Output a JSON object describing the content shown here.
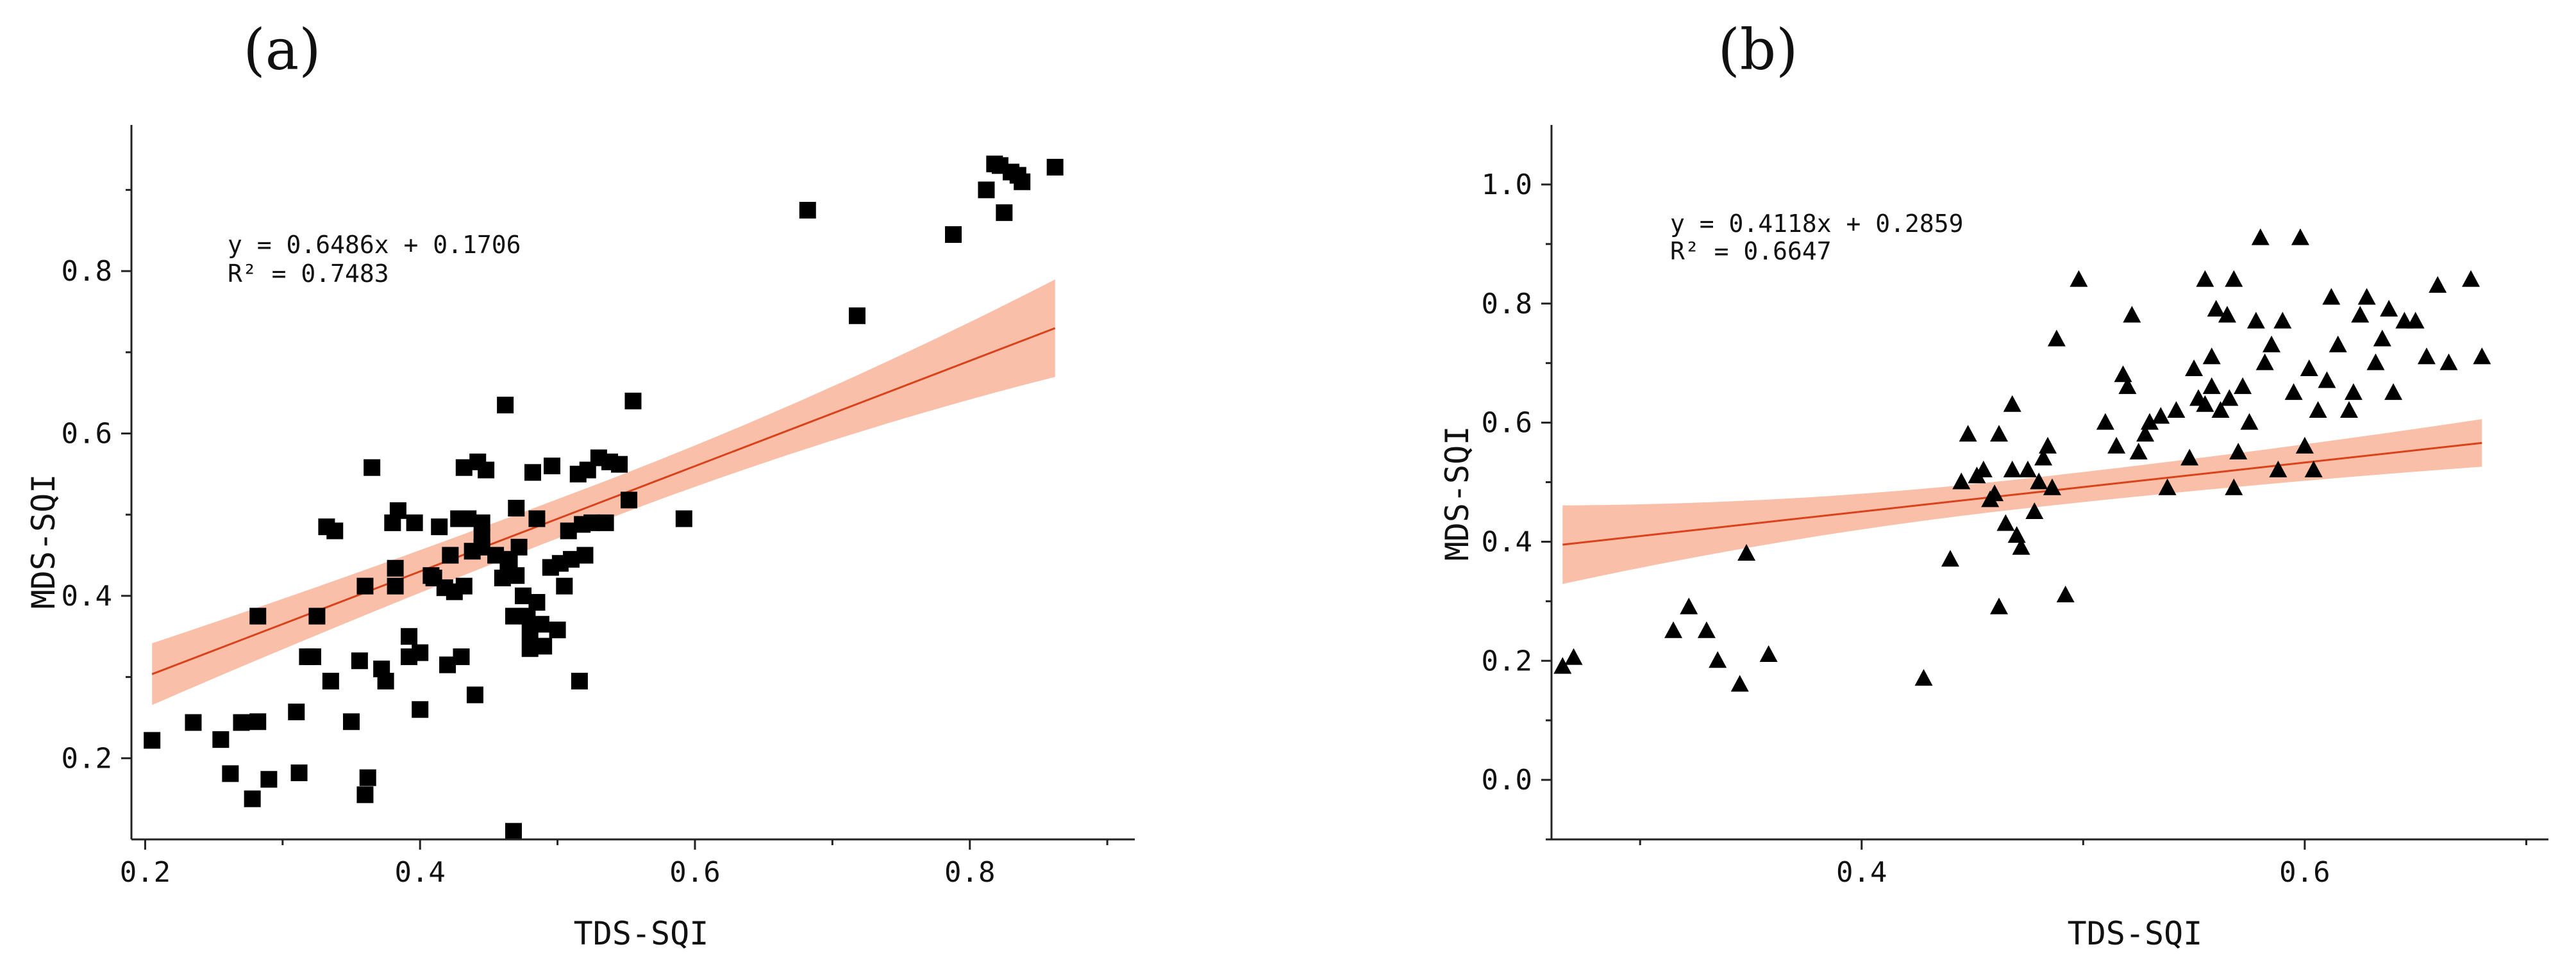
{
  "chart_data": [
    {
      "type": "scatter",
      "panel_label": "(a)",
      "marker": "square",
      "xlabel": "TDS-SQI",
      "ylabel": "MDS-SQI",
      "xlim": [
        0.19,
        0.92
      ],
      "ylim": [
        0.1,
        0.98
      ],
      "xticks": [
        0.2,
        0.4,
        0.6,
        0.8
      ],
      "xtick_labels": [
        "0.2",
        "0.4",
        "0.6",
        "0.8"
      ],
      "xticks_minor": [
        0.3,
        0.5,
        0.7,
        0.9
      ],
      "yticks": [
        0.2,
        0.4,
        0.6,
        0.8
      ],
      "ytick_labels": [
        "0.2",
        "0.4",
        "0.6",
        "0.8"
      ],
      "yticks_minor": [
        0.3,
        0.5,
        0.7,
        0.9
      ],
      "equation": "y = 0.6486x + 0.1706",
      "r_squared": "R² = 0.7483",
      "fit": {
        "slope": 0.6486,
        "intercept": 0.1706,
        "x_range": [
          0.205,
          0.862
        ],
        "ci_half_width": [
          0.038,
          0.024,
          0.06
        ]
      },
      "points": [
        [
          0.205,
          0.222
        ],
        [
          0.235,
          0.244
        ],
        [
          0.255,
          0.223
        ],
        [
          0.262,
          0.181
        ],
        [
          0.27,
          0.244
        ],
        [
          0.278,
          0.15
        ],
        [
          0.282,
          0.375
        ],
        [
          0.282,
          0.245
        ],
        [
          0.29,
          0.174
        ],
        [
          0.31,
          0.257
        ],
        [
          0.312,
          0.182
        ],
        [
          0.318,
          0.325
        ],
        [
          0.322,
          0.325
        ],
        [
          0.325,
          0.375
        ],
        [
          0.332,
          0.485
        ],
        [
          0.335,
          0.295
        ],
        [
          0.338,
          0.48
        ],
        [
          0.35,
          0.245
        ],
        [
          0.356,
          0.32
        ],
        [
          0.36,
          0.155
        ],
        [
          0.36,
          0.412
        ],
        [
          0.362,
          0.176
        ],
        [
          0.365,
          0.558
        ],
        [
          0.372,
          0.31
        ],
        [
          0.375,
          0.295
        ],
        [
          0.38,
          0.49
        ],
        [
          0.382,
          0.434
        ],
        [
          0.382,
          0.412
        ],
        [
          0.384,
          0.505
        ],
        [
          0.392,
          0.325
        ],
        [
          0.392,
          0.35
        ],
        [
          0.396,
          0.49
        ],
        [
          0.4,
          0.33
        ],
        [
          0.4,
          0.26
        ],
        [
          0.408,
          0.425
        ],
        [
          0.41,
          0.422
        ],
        [
          0.414,
          0.485
        ],
        [
          0.418,
          0.41
        ],
        [
          0.42,
          0.315
        ],
        [
          0.422,
          0.45
        ],
        [
          0.425,
          0.405
        ],
        [
          0.428,
          0.495
        ],
        [
          0.43,
          0.325
        ],
        [
          0.432,
          0.412
        ],
        [
          0.432,
          0.558
        ],
        [
          0.435,
          0.495
        ],
        [
          0.438,
          0.455
        ],
        [
          0.44,
          0.278
        ],
        [
          0.442,
          0.565
        ],
        [
          0.445,
          0.46
        ],
        [
          0.445,
          0.472
        ],
        [
          0.445,
          0.49
        ],
        [
          0.448,
          0.555
        ],
        [
          0.455,
          0.45
        ],
        [
          0.46,
          0.422
        ],
        [
          0.462,
          0.635
        ],
        [
          0.464,
          0.435
        ],
        [
          0.465,
          0.445
        ],
        [
          0.468,
          0.11
        ],
        [
          0.468,
          0.375
        ],
        [
          0.47,
          0.425
        ],
        [
          0.47,
          0.508
        ],
        [
          0.472,
          0.46
        ],
        [
          0.475,
          0.4
        ],
        [
          0.478,
          0.375
        ],
        [
          0.48,
          0.355
        ],
        [
          0.48,
          0.335
        ],
        [
          0.482,
          0.552
        ],
        [
          0.485,
          0.495
        ],
        [
          0.485,
          0.392
        ],
        [
          0.488,
          0.365
        ],
        [
          0.49,
          0.338
        ],
        [
          0.495,
          0.435
        ],
        [
          0.496,
          0.56
        ],
        [
          0.5,
          0.358
        ],
        [
          0.502,
          0.44
        ],
        [
          0.505,
          0.412
        ],
        [
          0.508,
          0.48
        ],
        [
          0.51,
          0.445
        ],
        [
          0.515,
          0.55
        ],
        [
          0.516,
          0.295
        ],
        [
          0.518,
          0.488
        ],
        [
          0.52,
          0.45
        ],
        [
          0.522,
          0.555
        ],
        [
          0.525,
          0.49
        ],
        [
          0.53,
          0.57
        ],
        [
          0.535,
          0.49
        ],
        [
          0.538,
          0.565
        ],
        [
          0.545,
          0.562
        ],
        [
          0.552,
          0.518
        ],
        [
          0.555,
          0.64
        ],
        [
          0.592,
          0.495
        ],
        [
          0.682,
          0.875
        ],
        [
          0.718,
          0.745
        ],
        [
          0.788,
          0.845
        ],
        [
          0.812,
          0.9
        ],
        [
          0.818,
          0.932
        ],
        [
          0.822,
          0.93
        ],
        [
          0.825,
          0.872
        ],
        [
          0.83,
          0.922
        ],
        [
          0.835,
          0.918
        ],
        [
          0.838,
          0.91
        ],
        [
          0.862,
          0.928
        ]
      ]
    },
    {
      "type": "scatter",
      "panel_label": "(b)",
      "marker": "triangle",
      "xlabel": "TDS-SQI",
      "ylabel": "MDS-SQI",
      "xlim": [
        0.26,
        0.71
      ],
      "ylim": [
        -0.1,
        1.1
      ],
      "xticks": [
        0.4,
        0.6
      ],
      "xtick_labels": [
        "0.4",
        "0.6"
      ],
      "xticks_minor": [
        0.3,
        0.5,
        0.7
      ],
      "yticks": [
        0.0,
        0.2,
        0.4,
        0.6,
        0.8,
        1.0
      ],
      "ytick_labels": [
        "0.0",
        "0.2",
        "0.4",
        "0.6",
        "0.8",
        "1.0"
      ],
      "yticks_minor": [
        -0.1,
        0.1,
        0.3,
        0.5,
        0.7,
        0.9
      ],
      "equation": "y = 0.4118x + 0.2859",
      "r_squared": "R² = 0.6647",
      "fit": {
        "slope": 0.4118,
        "intercept": 0.2859,
        "x_range": [
          0.265,
          0.68
        ],
        "ci_half_width": [
          0.066,
          0.025,
          0.04
        ]
      },
      "points": [
        [
          0.265,
          0.19
        ],
        [
          0.27,
          0.205
        ],
        [
          0.315,
          0.25
        ],
        [
          0.322,
          0.29
        ],
        [
          0.33,
          0.25
        ],
        [
          0.335,
          0.2
        ],
        [
          0.345,
          0.16
        ],
        [
          0.348,
          0.38
        ],
        [
          0.358,
          0.21
        ],
        [
          0.428,
          0.17
        ],
        [
          0.44,
          0.37
        ],
        [
          0.445,
          0.5
        ],
        [
          0.448,
          0.58
        ],
        [
          0.452,
          0.51
        ],
        [
          0.455,
          0.52
        ],
        [
          0.458,
          0.47
        ],
        [
          0.46,
          0.48
        ],
        [
          0.462,
          0.29
        ],
        [
          0.462,
          0.58
        ],
        [
          0.465,
          0.43
        ],
        [
          0.468,
          0.63
        ],
        [
          0.468,
          0.52
        ],
        [
          0.47,
          0.41
        ],
        [
          0.472,
          0.39
        ],
        [
          0.475,
          0.52
        ],
        [
          0.478,
          0.45
        ],
        [
          0.48,
          0.5
        ],
        [
          0.482,
          0.54
        ],
        [
          0.484,
          0.56
        ],
        [
          0.486,
          0.49
        ],
        [
          0.488,
          0.74
        ],
        [
          0.492,
          0.31
        ],
        [
          0.498,
          0.84
        ],
        [
          0.51,
          0.6
        ],
        [
          0.515,
          0.56
        ],
        [
          0.518,
          0.68
        ],
        [
          0.52,
          0.66
        ],
        [
          0.522,
          0.78
        ],
        [
          0.525,
          0.55
        ],
        [
          0.528,
          0.58
        ],
        [
          0.53,
          0.6
        ],
        [
          0.535,
          0.61
        ],
        [
          0.538,
          0.49
        ],
        [
          0.542,
          0.62
        ],
        [
          0.548,
          0.54
        ],
        [
          0.55,
          0.69
        ],
        [
          0.552,
          0.64
        ],
        [
          0.555,
          0.63
        ],
        [
          0.555,
          0.84
        ],
        [
          0.558,
          0.66
        ],
        [
          0.558,
          0.71
        ],
        [
          0.56,
          0.79
        ],
        [
          0.562,
          0.62
        ],
        [
          0.565,
          0.78
        ],
        [
          0.566,
          0.64
        ],
        [
          0.568,
          0.84
        ],
        [
          0.568,
          0.49
        ],
        [
          0.57,
          0.55
        ],
        [
          0.572,
          0.66
        ],
        [
          0.575,
          0.6
        ],
        [
          0.578,
          0.77
        ],
        [
          0.58,
          0.91
        ],
        [
          0.582,
          0.7
        ],
        [
          0.585,
          0.73
        ],
        [
          0.588,
          0.52
        ],
        [
          0.59,
          0.77
        ],
        [
          0.595,
          0.65
        ],
        [
          0.598,
          0.91
        ],
        [
          0.6,
          0.56
        ],
        [
          0.602,
          0.69
        ],
        [
          0.604,
          0.52
        ],
        [
          0.606,
          0.62
        ],
        [
          0.61,
          0.67
        ],
        [
          0.612,
          0.81
        ],
        [
          0.615,
          0.73
        ],
        [
          0.62,
          0.62
        ],
        [
          0.622,
          0.65
        ],
        [
          0.625,
          0.78
        ],
        [
          0.628,
          0.81
        ],
        [
          0.632,
          0.7
        ],
        [
          0.635,
          0.74
        ],
        [
          0.638,
          0.79
        ],
        [
          0.64,
          0.65
        ],
        [
          0.645,
          0.77
        ],
        [
          0.65,
          0.77
        ],
        [
          0.655,
          0.71
        ],
        [
          0.66,
          0.83
        ],
        [
          0.665,
          0.7
        ],
        [
          0.675,
          0.84
        ],
        [
          0.68,
          0.71
        ]
      ]
    }
  ]
}
